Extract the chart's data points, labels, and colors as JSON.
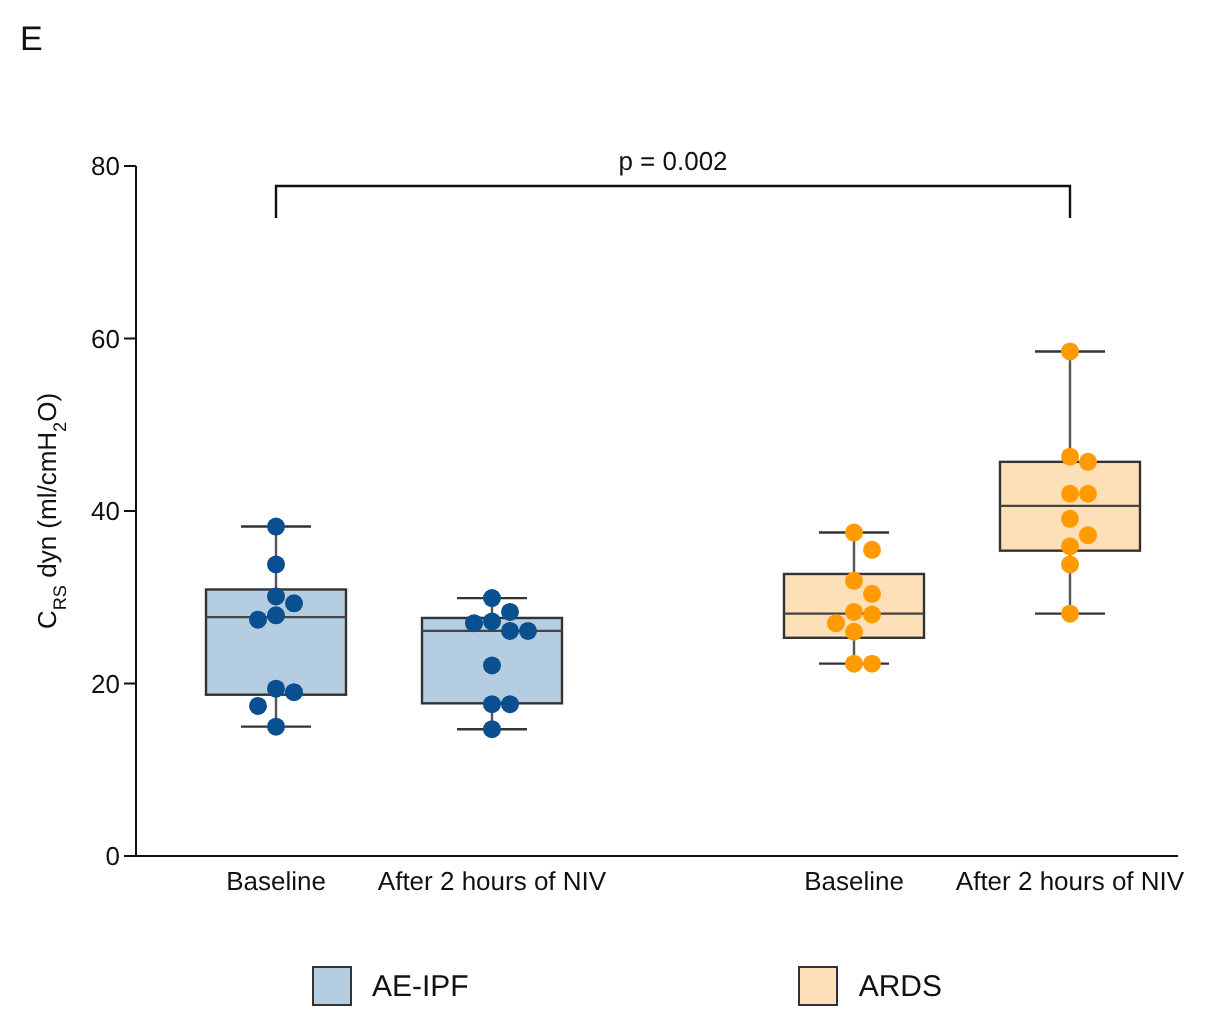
{
  "chart_data": [
    {
      "type": "box",
      "title": "E",
      "ylabel": "C$_{RS}$ dyn (ml/cmH$_{2}$O)",
      "categories": [
        "Baseline",
        "After 2 hours of NIV"
      ],
      "ylim": [
        0,
        80
      ],
      "yticks": [
        0,
        20,
        40,
        60,
        80
      ],
      "grid": false,
      "legend": "bottom",
      "annotations": [
        "p = 0.002"
      ],
      "series": [
        {
          "name": "AE-IPF",
          "color": "#b4cde1",
          "boxes": [
            {
              "low": 15.0,
              "q1": 18.7,
              "median": 27.7,
              "q3": 30.9,
              "high": 38.2
            },
            {
              "low": 14.7,
              "q1": 17.7,
              "median": 26.1,
              "q3": 27.6,
              "high": 29.9
            }
          ]
        },
        {
          "type": "scatter",
          "color": "#0a4f8f",
          "x": [
            "Baseline",
            "Baseline",
            "Baseline",
            "Baseline",
            "Baseline",
            "Baseline",
            "Baseline",
            "Baseline",
            "Baseline",
            "Baseline",
            "After 2 hours of NIV",
            "After 2 hours of NIV",
            "After 2 hours of NIV",
            "After 2 hours of NIV",
            "After 2 hours of NIV",
            "After 2 hours of NIV",
            "After 2 hours of NIV",
            "After 2 hours of NIV",
            "After 2 hours of NIV",
            "After 2 hours of NIV"
          ],
          "values": [
            38.2,
            33.8,
            30.1,
            29.3,
            27.9,
            27.4,
            19.4,
            19.0,
            17.4,
            15.0,
            29.9,
            28.3,
            27.2,
            27.0,
            26.1,
            26.1,
            22.1,
            17.6,
            17.6,
            14.7
          ]
        }
      ]
    },
    {
      "type": "box",
      "categories": [
        "Baseline",
        "After 2 hours of NIV"
      ],
      "ylim": [
        0,
        80
      ],
      "yticks": [
        0,
        20,
        40,
        60,
        80
      ],
      "grid": false,
      "legend": "bottom",
      "tick_labels": "x",
      "series": [
        {
          "name": "ARDS",
          "color": "#fde0b8",
          "boxes": [
            {
              "low": 22.3,
              "q1": 25.3,
              "median": 28.1,
              "q3": 32.7,
              "high": 37.5
            },
            {
              "low": 28.1,
              "q1": 35.4,
              "median": 40.6,
              "q3": 45.7,
              "high": 58.5
            }
          ]
        },
        {
          "type": "scatter",
          "color": "#ff9a00",
          "x": [
            "Baseline",
            "Baseline",
            "Baseline",
            "Baseline",
            "Baseline",
            "Baseline",
            "Baseline",
            "Baseline",
            "Baseline",
            "Baseline",
            "After 2 hours of NIV",
            "After 2 hours of NIV",
            "After 2 hours of NIV",
            "After 2 hours of NIV",
            "After 2 hours of NIV",
            "After 2 hours of NIV",
            "After 2 hours of NIV",
            "After 2 hours of NIV",
            "After 2 hours of NIV",
            "After 2 hours of NIV"
          ],
          "values": [
            37.5,
            35.5,
            31.9,
            30.4,
            28.3,
            28.0,
            27.0,
            26.0,
            22.3,
            22.3,
            58.5,
            46.3,
            45.7,
            42.0,
            42.0,
            39.1,
            37.2,
            35.9,
            33.8,
            28.1
          ]
        }
      ]
    }
  ]
}
